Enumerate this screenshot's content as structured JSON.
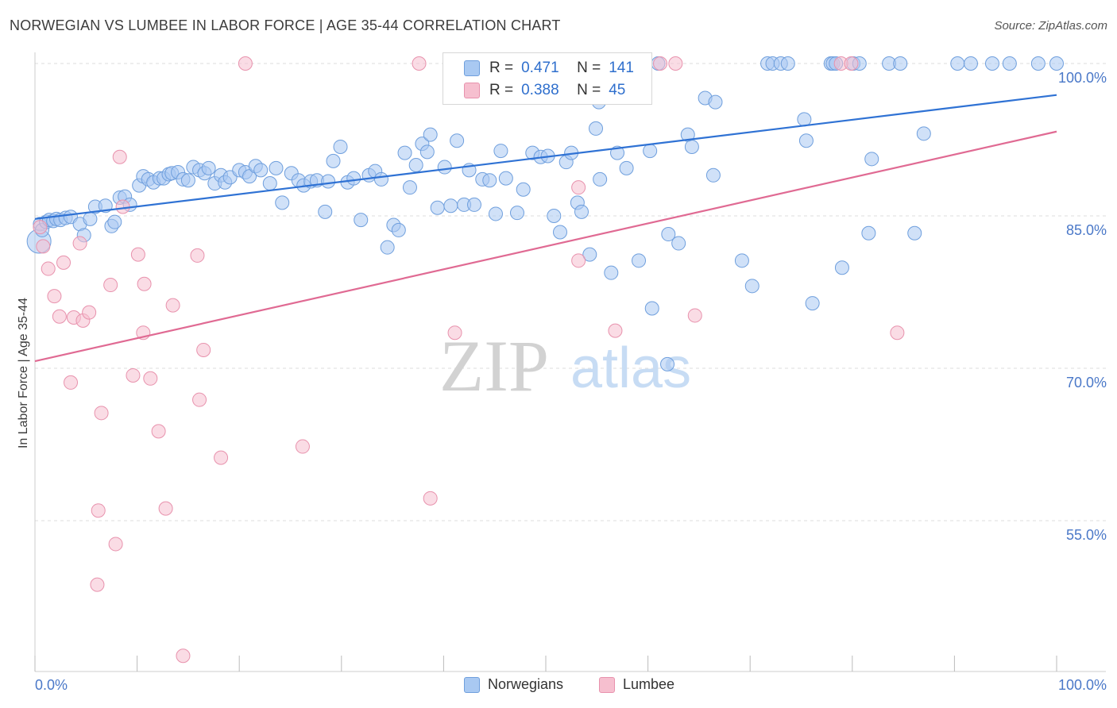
{
  "title": "NORWEGIAN VS LUMBEE IN LABOR FORCE | AGE 35-44 CORRELATION CHART",
  "source": "Source: ZipAtlas.com",
  "watermark": {
    "zip": "ZIP",
    "atlas": "atlas"
  },
  "legend": {
    "r_label": "R =",
    "n_label": "N =",
    "rows": [
      {
        "r": "0.471",
        "n": "141"
      },
      {
        "r": "0.388",
        "n": "45"
      }
    ]
  },
  "colors": {
    "norwegians_fill": "#a9c9f2",
    "norwegians_stroke": "#6f9fdd",
    "norwegians_line": "#2f72d4",
    "lumbee_fill": "#f6bfcf",
    "lumbee_stroke": "#e892ad",
    "lumbee_line": "#e06a93",
    "axis_text": "#4a78c8",
    "grid": "#dddddd"
  },
  "chart_data": {
    "type": "scatter",
    "title": "NORWEGIAN VS LUMBEE IN LABOR FORCE | AGE 35-44 CORRELATION CHART",
    "xlabel": "",
    "ylabel": "In Labor Force | Age 35-44",
    "xlim": [
      0,
      100
    ],
    "ylim": [
      41.5,
      101.5
    ],
    "x_tick_labels": [
      "0.0%",
      "100.0%"
    ],
    "y_ticks": [
      55,
      70,
      85,
      100
    ],
    "y_tick_labels": [
      "55.0%",
      "70.0%",
      "85.0%",
      "100.0%"
    ],
    "grid": true,
    "legend_position": "top-center",
    "series": [
      {
        "name": "Norwegians",
        "trend": {
          "x": [
            0,
            100
          ],
          "y": [
            84.7,
            96.9
          ]
        },
        "points": [
          [
            0.4,
            82.5
          ],
          [
            0.5,
            84.2
          ],
          [
            0.7,
            83.6
          ],
          [
            1.1,
            84.4
          ],
          [
            1.4,
            84.6
          ],
          [
            1.8,
            84.5
          ],
          [
            2.1,
            84.7
          ],
          [
            2.5,
            84.6
          ],
          [
            3.0,
            84.8
          ],
          [
            3.5,
            84.9
          ],
          [
            4.4,
            84.2
          ],
          [
            4.8,
            83.1
          ],
          [
            5.4,
            84.7
          ],
          [
            5.9,
            85.9
          ],
          [
            6.9,
            86.0
          ],
          [
            7.5,
            84.0
          ],
          [
            7.8,
            84.4
          ],
          [
            8.3,
            86.8
          ],
          [
            8.8,
            86.9
          ],
          [
            9.3,
            86.1
          ],
          [
            10.2,
            88.0
          ],
          [
            10.6,
            88.9
          ],
          [
            11.1,
            88.6
          ],
          [
            11.6,
            88.3
          ],
          [
            12.2,
            88.7
          ],
          [
            12.6,
            88.7
          ],
          [
            13.1,
            89.1
          ],
          [
            13.4,
            89.2
          ],
          [
            14.0,
            89.3
          ],
          [
            14.5,
            88.6
          ],
          [
            15.0,
            88.5
          ],
          [
            15.5,
            89.8
          ],
          [
            16.1,
            89.5
          ],
          [
            16.6,
            89.2
          ],
          [
            17.0,
            89.7
          ],
          [
            17.6,
            88.2
          ],
          [
            18.2,
            89.0
          ],
          [
            18.6,
            88.3
          ],
          [
            19.1,
            88.8
          ],
          [
            20.0,
            89.5
          ],
          [
            20.6,
            89.3
          ],
          [
            21.0,
            88.9
          ],
          [
            21.6,
            89.9
          ],
          [
            22.1,
            89.5
          ],
          [
            23.0,
            88.2
          ],
          [
            23.6,
            89.7
          ],
          [
            24.2,
            86.3
          ],
          [
            25.1,
            89.2
          ],
          [
            25.8,
            88.5
          ],
          [
            26.3,
            88.0
          ],
          [
            27.0,
            88.4
          ],
          [
            27.6,
            88.5
          ],
          [
            28.4,
            85.4
          ],
          [
            28.7,
            88.4
          ],
          [
            29.2,
            90.4
          ],
          [
            29.9,
            91.8
          ],
          [
            30.6,
            88.3
          ],
          [
            31.2,
            88.7
          ],
          [
            31.9,
            84.6
          ],
          [
            32.7,
            89.0
          ],
          [
            33.3,
            89.4
          ],
          [
            33.9,
            88.6
          ],
          [
            34.5,
            81.9
          ],
          [
            35.1,
            84.1
          ],
          [
            35.6,
            83.6
          ],
          [
            36.2,
            91.2
          ],
          [
            36.7,
            87.8
          ],
          [
            37.3,
            90.0
          ],
          [
            37.9,
            92.1
          ],
          [
            38.4,
            91.3
          ],
          [
            38.7,
            93.0
          ],
          [
            39.4,
            85.8
          ],
          [
            40.1,
            89.8
          ],
          [
            40.7,
            86.0
          ],
          [
            41.3,
            92.4
          ],
          [
            42.0,
            86.1
          ],
          [
            42.5,
            89.5
          ],
          [
            43.0,
            86.1
          ],
          [
            43.8,
            88.6
          ],
          [
            44.5,
            88.5
          ],
          [
            45.1,
            85.2
          ],
          [
            45.6,
            91.4
          ],
          [
            46.1,
            88.7
          ],
          [
            47.2,
            85.3
          ],
          [
            47.8,
            87.6
          ],
          [
            48.7,
            91.2
          ],
          [
            49.5,
            90.8
          ],
          [
            50.2,
            90.9
          ],
          [
            50.8,
            85.0
          ],
          [
            51.4,
            83.4
          ],
          [
            52.0,
            90.3
          ],
          [
            52.5,
            91.2
          ],
          [
            53.1,
            86.3
          ],
          [
            53.5,
            85.4
          ],
          [
            54.3,
            81.2
          ],
          [
            54.9,
            93.6
          ],
          [
            55.3,
            88.6
          ],
          [
            56.4,
            79.4
          ],
          [
            57.0,
            91.2
          ],
          [
            57.9,
            89.7
          ],
          [
            59.1,
            80.6
          ],
          [
            60.2,
            91.4
          ],
          [
            60.4,
            75.9
          ],
          [
            62.0,
            83.2
          ],
          [
            61.9,
            70.4
          ],
          [
            63.0,
            82.3
          ],
          [
            63.9,
            93.0
          ],
          [
            64.3,
            91.8
          ],
          [
            65.6,
            96.6
          ],
          [
            66.4,
            89.0
          ],
          [
            66.6,
            96.2
          ],
          [
            69.2,
            80.6
          ],
          [
            70.2,
            78.1
          ],
          [
            71.7,
            100.0
          ],
          [
            72.2,
            100.0
          ],
          [
            73.0,
            100.0
          ],
          [
            73.7,
            100.0
          ],
          [
            75.3,
            94.5
          ],
          [
            75.5,
            92.4
          ],
          [
            76.1,
            76.4
          ],
          [
            77.9,
            100.0
          ],
          [
            78.1,
            100.0
          ],
          [
            78.4,
            100.0
          ],
          [
            79.0,
            79.9
          ],
          [
            80.1,
            100.0
          ],
          [
            80.7,
            100.0
          ],
          [
            81.6,
            83.3
          ],
          [
            81.9,
            90.6
          ],
          [
            83.6,
            100.0
          ],
          [
            84.7,
            100.0
          ],
          [
            86.1,
            83.3
          ],
          [
            87.0,
            93.1
          ],
          [
            90.3,
            100.0
          ],
          [
            91.6,
            100.0
          ],
          [
            93.7,
            100.0
          ],
          [
            95.4,
            100.0
          ],
          [
            98.2,
            100.0
          ],
          [
            100.0,
            100.0
          ],
          [
            44.3,
            100.0
          ],
          [
            61.0,
            100.0
          ],
          [
            55.2,
            96.2
          ]
        ]
      },
      {
        "name": "Lumbee",
        "trend": {
          "x": [
            0,
            100
          ],
          "y": [
            70.7,
            93.3
          ]
        },
        "points": [
          [
            0.5,
            83.9
          ],
          [
            0.8,
            82.0
          ],
          [
            1.3,
            79.8
          ],
          [
            1.9,
            77.1
          ],
          [
            2.4,
            75.1
          ],
          [
            2.8,
            80.4
          ],
          [
            3.5,
            68.6
          ],
          [
            3.8,
            75.0
          ],
          [
            4.4,
            82.3
          ],
          [
            4.7,
            74.7
          ],
          [
            5.3,
            75.5
          ],
          [
            6.2,
            56.0
          ],
          [
            6.5,
            65.6
          ],
          [
            7.4,
            78.2
          ],
          [
            7.9,
            52.7
          ],
          [
            8.3,
            90.8
          ],
          [
            8.6,
            85.9
          ],
          [
            9.6,
            69.3
          ],
          [
            10.1,
            81.2
          ],
          [
            10.6,
            73.5
          ],
          [
            10.7,
            78.3
          ],
          [
            11.3,
            69.0
          ],
          [
            12.1,
            63.8
          ],
          [
            12.8,
            56.2
          ],
          [
            13.5,
            76.2
          ],
          [
            14.5,
            41.7
          ],
          [
            15.9,
            81.1
          ],
          [
            16.1,
            66.9
          ],
          [
            16.5,
            71.8
          ],
          [
            18.2,
            61.2
          ],
          [
            20.6,
            100.0
          ],
          [
            26.2,
            62.3
          ],
          [
            37.6,
            100.0
          ],
          [
            38.7,
            57.2
          ],
          [
            41.1,
            73.5
          ],
          [
            53.2,
            87.8
          ],
          [
            53.2,
            80.6
          ],
          [
            56.8,
            73.7
          ],
          [
            61.2,
            100.0
          ],
          [
            62.7,
            100.0
          ],
          [
            64.6,
            75.2
          ],
          [
            78.9,
            100.0
          ],
          [
            79.9,
            100.0
          ],
          [
            84.4,
            73.5
          ],
          [
            6.1,
            48.7
          ]
        ]
      }
    ]
  },
  "bottom_legend": [
    {
      "label": "Norwegians"
    },
    {
      "label": "Lumbee"
    }
  ]
}
